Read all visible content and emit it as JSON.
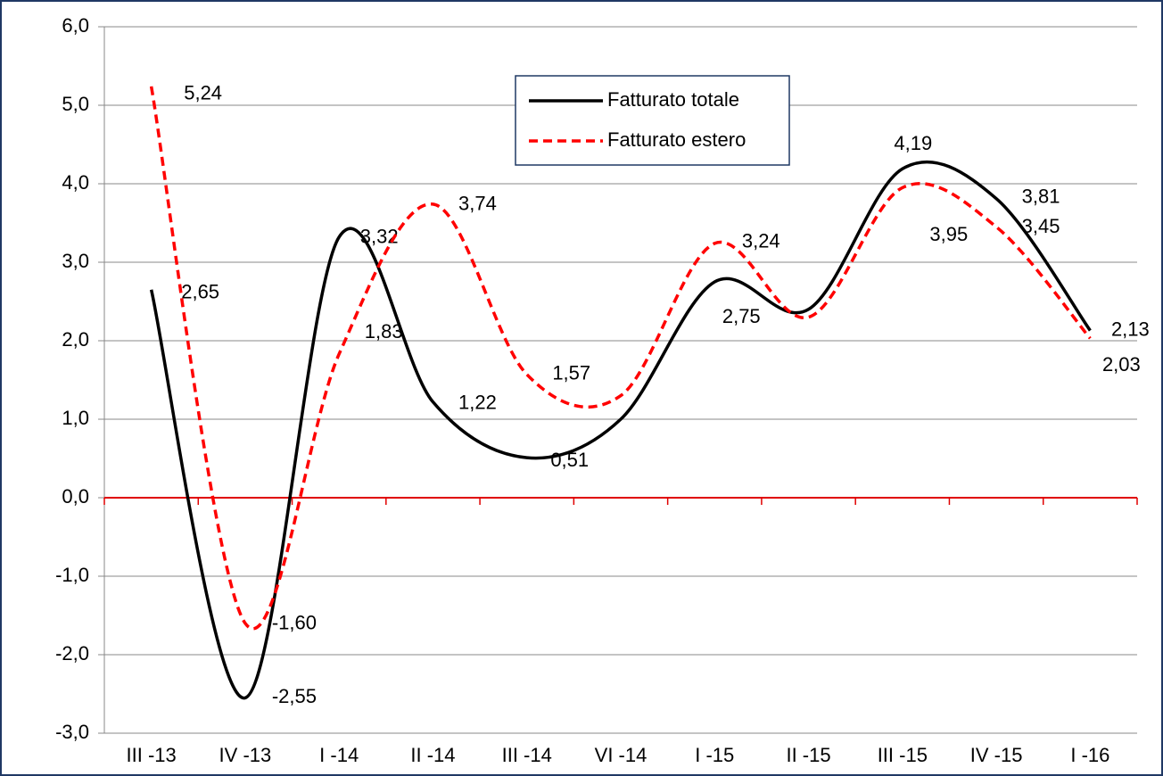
{
  "chart_data": {
    "type": "line",
    "categories": [
      "III -13",
      "IV -13",
      "I -14",
      "II -14",
      "III -14",
      "VI -14",
      "I -15",
      "II -15",
      "III -15",
      "IV -15",
      "I -16"
    ],
    "series": [
      {
        "name": "Fatturato totale",
        "color": "#000000",
        "dash": false,
        "values": [
          2.65,
          -2.55,
          3.32,
          1.22,
          0.51,
          1.0,
          2.75,
          2.4,
          4.19,
          3.81,
          2.13
        ],
        "value_labels": [
          "2,65",
          "-2,55",
          "3,32",
          "1,22",
          "0,51",
          null,
          "2,75",
          null,
          "4,19",
          "3,81",
          "2,13"
        ]
      },
      {
        "name": "Fatturato estero",
        "color": "#ff0000",
        "dash": true,
        "values": [
          5.24,
          -1.6,
          1.83,
          3.74,
          1.57,
          1.3,
          3.24,
          2.3,
          3.95,
          3.45,
          2.03
        ],
        "value_labels": [
          "5,24",
          "-1,60",
          "1,83",
          "3,74",
          "1,57",
          null,
          "3,24",
          null,
          "3,95",
          "3,45",
          "2,03"
        ]
      }
    ],
    "ylim": [
      -3,
      6
    ],
    "yticks": [
      {
        "value": -3,
        "label": "-3,0"
      },
      {
        "value": -2,
        "label": "-2,0"
      },
      {
        "value": -1,
        "label": "-1,0"
      },
      {
        "value": 0,
        "label": "0,0"
      },
      {
        "value": 1,
        "label": "1,0"
      },
      {
        "value": 2,
        "label": "2,0"
      },
      {
        "value": 3,
        "label": "3,0"
      },
      {
        "value": 4,
        "label": "4,0"
      },
      {
        "value": 5,
        "label": "5,0"
      },
      {
        "value": 6,
        "label": "6,0"
      }
    ],
    "grid": true,
    "smooth": true,
    "legend": "top"
  }
}
